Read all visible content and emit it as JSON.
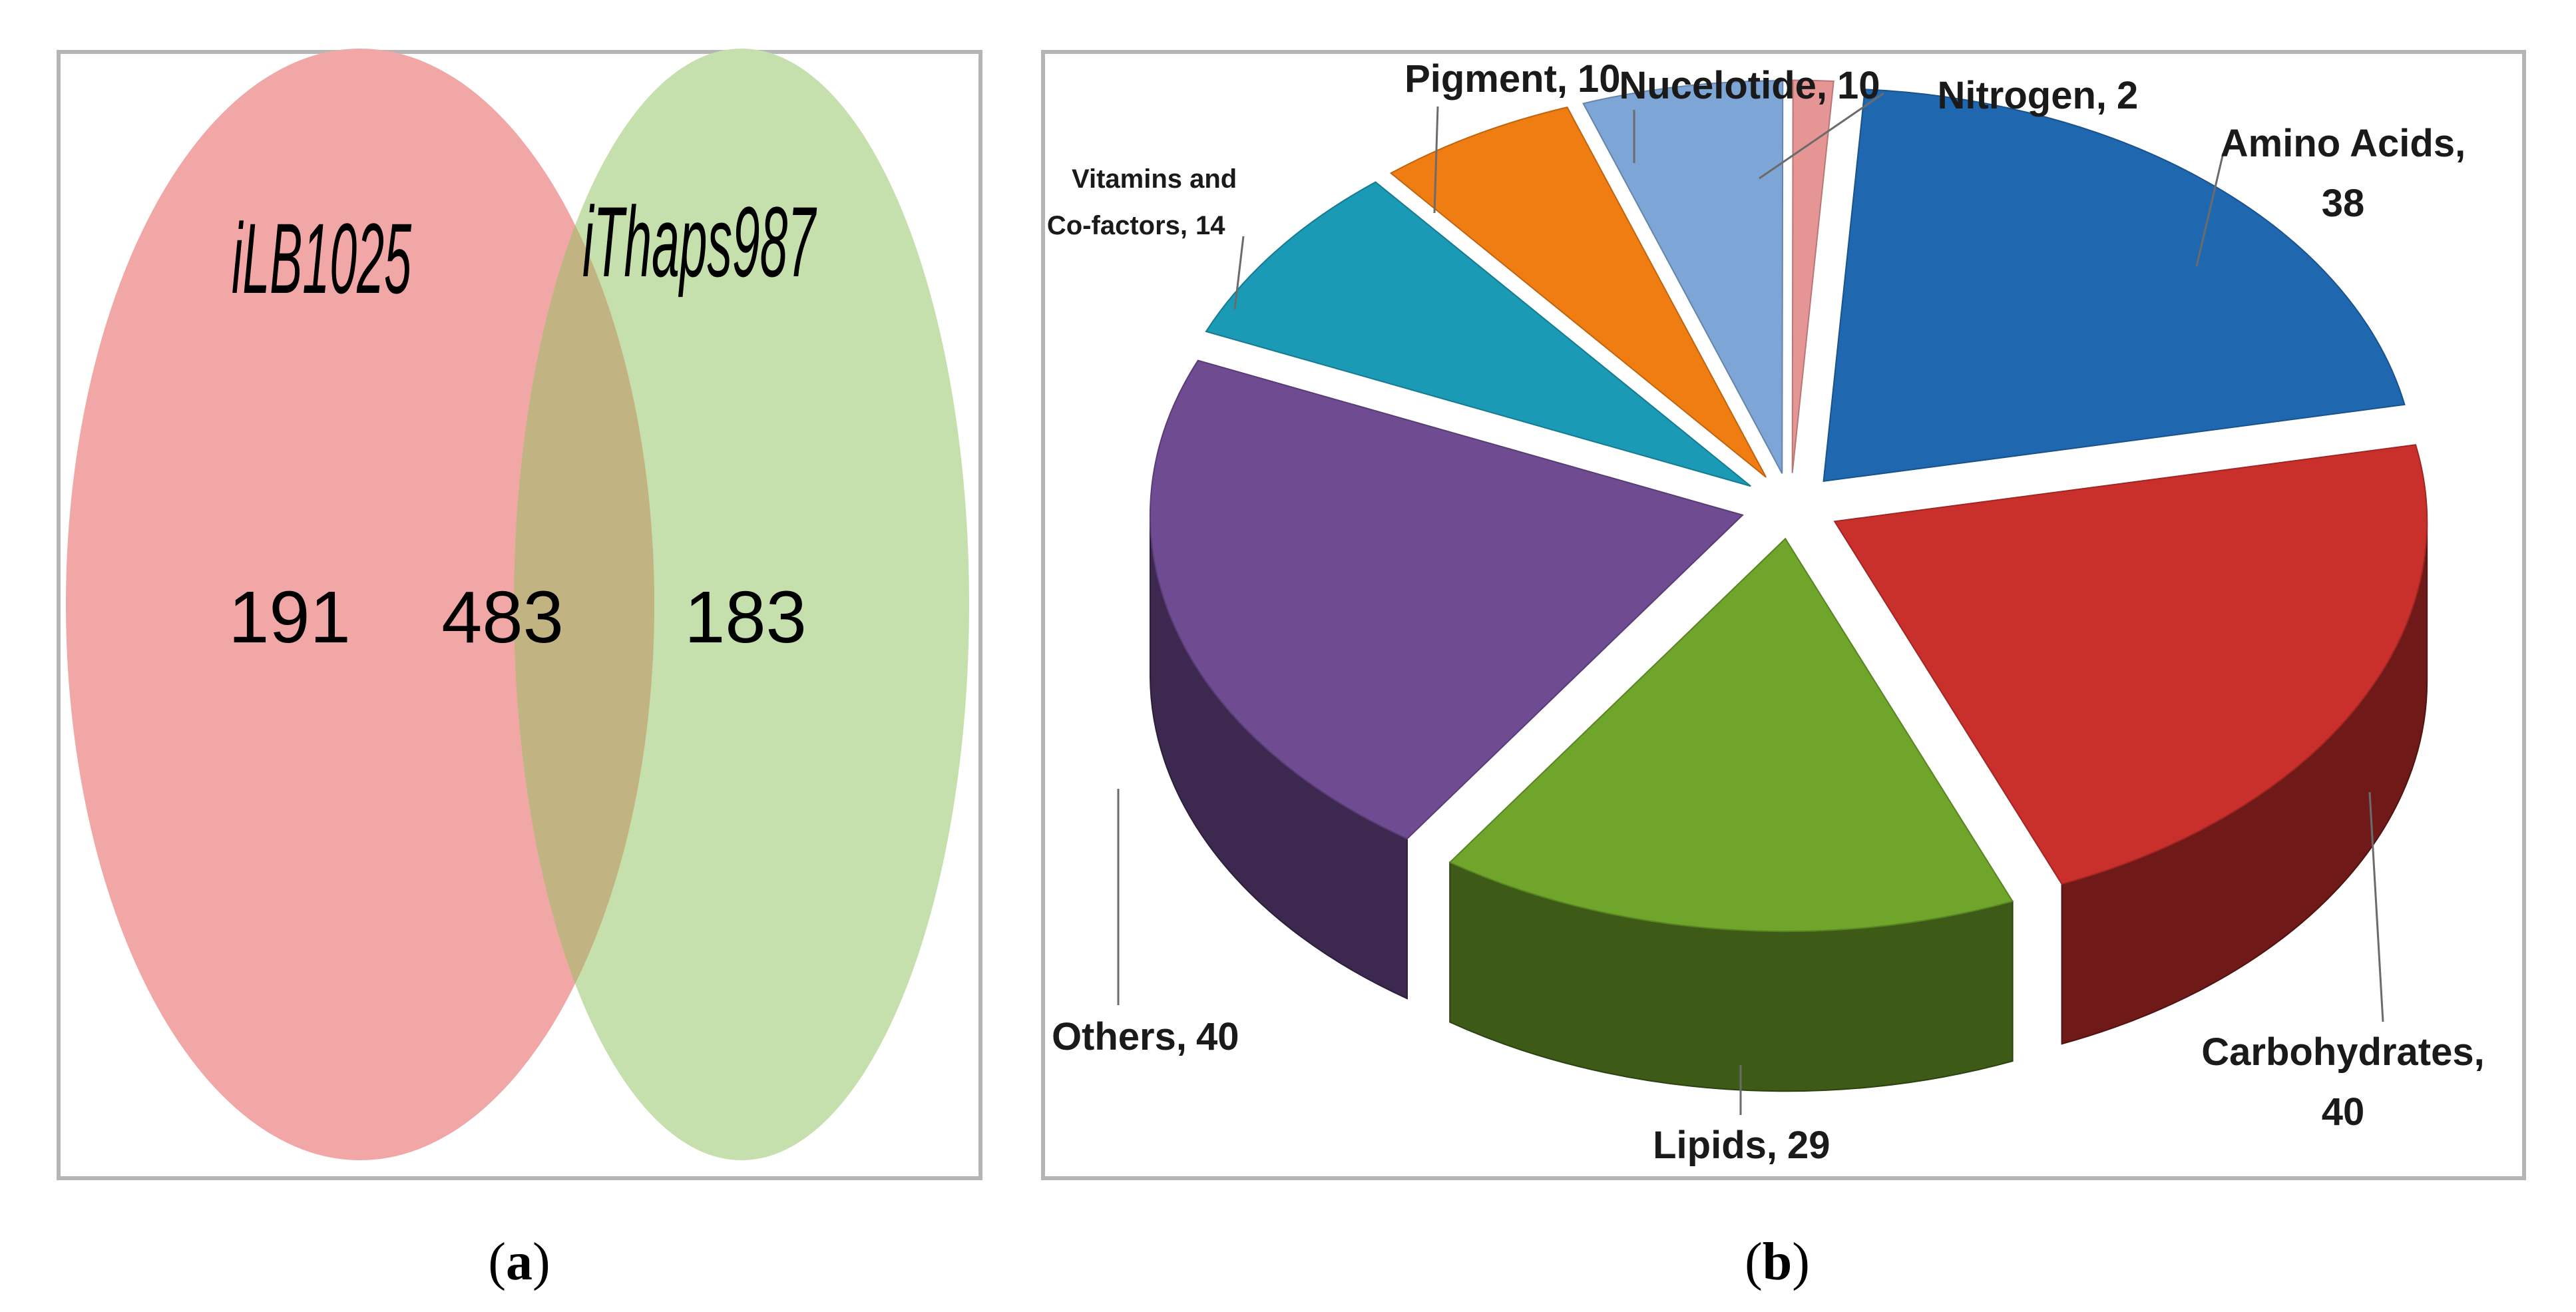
{
  "chart_data": [
    {
      "type": "venn",
      "sets": [
        {
          "name": "iLB1025",
          "only": 191,
          "color": "#f2a7a7"
        },
        {
          "name": "iThaps987",
          "only": 183,
          "color": "#c6e0ad"
        }
      ],
      "intersection": 483,
      "intersection_color": "#c2b382",
      "caption_letter": "a"
    },
    {
      "type": "pie",
      "style": "3d-exploded",
      "slices": [
        {
          "label": "Amino Acids,",
          "value": 38,
          "color": "#1f68b0"
        },
        {
          "label": "Carbohydrates,",
          "value": 40,
          "color": "#c9302c"
        },
        {
          "label": "Lipids,",
          "value": 29,
          "color": "#6ea52a"
        },
        {
          "label": "Others,",
          "value": 40,
          "color": "#6f4b92"
        },
        {
          "label": "Vitamins and",
          "label2": "Co-factors,",
          "value": 14,
          "color": "#1a9ab5"
        },
        {
          "label": "Pigment,",
          "value": 10,
          "color": "#f07d12"
        },
        {
          "label": "Nucelotide,",
          "value": 10,
          "color": "#7da6d6"
        },
        {
          "label": "Nitrogen,",
          "value": 2,
          "color": "#e59593"
        }
      ],
      "caption_letter": "b"
    }
  ]
}
